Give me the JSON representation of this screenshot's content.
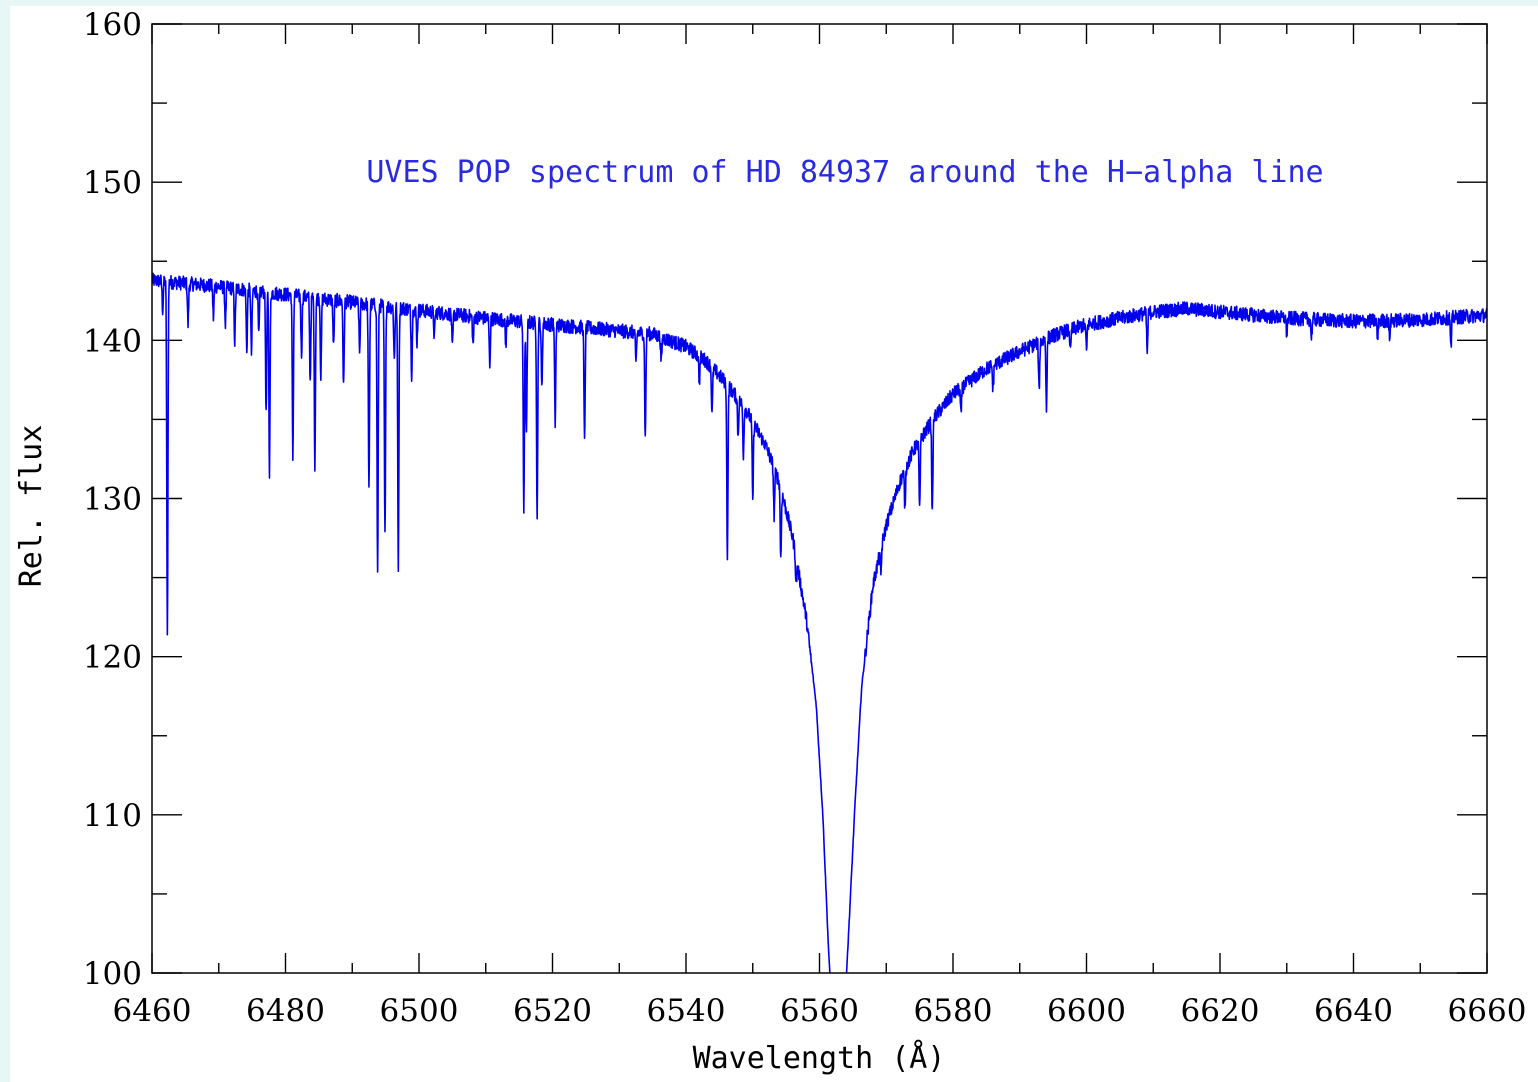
{
  "page": {
    "background": "#e6f7f5",
    "panel_background": "#ffffff"
  },
  "chart_data": {
    "type": "line",
    "title": "UVES POP spectrum of HD 84937 around the H−alpha line",
    "xlabel": "Wavelength (Å)",
    "ylabel": "Rel. flux",
    "xlim": [
      6460,
      6660
    ],
    "ylim": [
      100,
      160
    ],
    "x_major_ticks": [
      6460,
      6480,
      6500,
      6520,
      6540,
      6560,
      6580,
      6600,
      6620,
      6640,
      6660
    ],
    "x_minor_step": 10,
    "y_major_ticks": [
      100,
      110,
      120,
      130,
      140,
      150,
      160
    ],
    "y_minor_step": 5,
    "grid": false,
    "legend": "none",
    "line_color": "#0000ee",
    "title_color": "#2a2ae0",
    "series": [
      {
        "continuum": [
          [
            6460,
            143.8
          ],
          [
            6470,
            143.4
          ],
          [
            6480,
            142.9
          ],
          [
            6490,
            142.4
          ],
          [
            6500,
            141.9
          ],
          [
            6510,
            141.4
          ],
          [
            6520,
            141.0
          ],
          [
            6530,
            140.6
          ],
          [
            6535,
            140.4
          ],
          [
            6540,
            139.6
          ],
          [
            6543,
            138.7
          ],
          [
            6546,
            137.3
          ],
          [
            6549,
            135.6
          ],
          [
            6552,
            133.3
          ],
          [
            6554,
            131.0
          ],
          [
            6556,
            127.5
          ],
          [
            6558,
            122.5
          ],
          [
            6559.5,
            117.0
          ],
          [
            6560.5,
            110.0
          ],
          [
            6561.3,
            102.0
          ],
          [
            6562,
            96.0
          ],
          [
            6563.5,
            96.0
          ],
          [
            6564.3,
            102.0
          ],
          [
            6565.3,
            110.5
          ],
          [
            6566.3,
            118.0
          ],
          [
            6568,
            124.5
          ],
          [
            6570,
            128.3
          ],
          [
            6572,
            131.0
          ],
          [
            6574,
            133.0
          ],
          [
            6577,
            135.0
          ],
          [
            6580,
            136.6
          ],
          [
            6585,
            138.2
          ],
          [
            6590,
            139.3
          ],
          [
            6595,
            140.3
          ],
          [
            6600,
            141.0
          ],
          [
            6605,
            141.4
          ],
          [
            6610,
            141.8
          ],
          [
            6615,
            142.0
          ],
          [
            6620,
            141.8
          ],
          [
            6630,
            141.4
          ],
          [
            6640,
            141.2
          ],
          [
            6650,
            141.3
          ],
          [
            6660,
            141.6
          ]
        ],
        "absorption_lines": [
          {
            "x": 6462.3,
            "depth": 22.5
          },
          {
            "x": 6461.6,
            "depth": 1.8
          },
          {
            "x": 6465.4,
            "depth": 2.6
          },
          {
            "x": 6469.2,
            "depth": 2.0
          },
          {
            "x": 6471.0,
            "depth": 2.3
          },
          {
            "x": 6472.4,
            "depth": 3.4
          },
          {
            "x": 6474.2,
            "depth": 3.8
          },
          {
            "x": 6474.9,
            "depth": 4.0
          },
          {
            "x": 6476.0,
            "depth": 2.9
          },
          {
            "x": 6477.1,
            "depth": 7.8
          },
          {
            "x": 6477.6,
            "depth": 11.3
          },
          {
            "x": 6481.1,
            "depth": 10.3
          },
          {
            "x": 6482.4,
            "depth": 3.7
          },
          {
            "x": 6483.7,
            "depth": 5.3
          },
          {
            "x": 6484.4,
            "depth": 10.5
          },
          {
            "x": 6485.3,
            "depth": 5.0
          },
          {
            "x": 6487.2,
            "depth": 3.0
          },
          {
            "x": 6488.7,
            "depth": 5.5
          },
          {
            "x": 6491.1,
            "depth": 3.1
          },
          {
            "x": 6492.5,
            "depth": 11.8
          },
          {
            "x": 6493.8,
            "depth": 17.0
          },
          {
            "x": 6494.9,
            "depth": 14.6
          },
          {
            "x": 6496.3,
            "depth": 3.3
          },
          {
            "x": 6496.9,
            "depth": 16.3
          },
          {
            "x": 6498.9,
            "depth": 4.1
          },
          {
            "x": 6499.7,
            "depth": 2.0
          },
          {
            "x": 6502.3,
            "depth": 1.6
          },
          {
            "x": 6505.0,
            "depth": 2.2
          },
          {
            "x": 6508.1,
            "depth": 1.8
          },
          {
            "x": 6510.6,
            "depth": 2.9
          },
          {
            "x": 6513.0,
            "depth": 1.6
          },
          {
            "x": 6515.7,
            "depth": 12.0
          },
          {
            "x": 6516.1,
            "depth": 7.0
          },
          {
            "x": 6517.7,
            "depth": 12.3
          },
          {
            "x": 6518.4,
            "depth": 4.1
          },
          {
            "x": 6520.4,
            "depth": 6.2
          },
          {
            "x": 6524.8,
            "depth": 7.3
          },
          {
            "x": 6532.5,
            "depth": 2.0
          },
          {
            "x": 6533.9,
            "depth": 6.7
          },
          {
            "x": 6536.3,
            "depth": 1.6
          },
          {
            "x": 6542.0,
            "depth": 1.6
          },
          {
            "x": 6543.9,
            "depth": 3.0
          },
          {
            "x": 6546.2,
            "depth": 11.0
          },
          {
            "x": 6547.8,
            "depth": 2.3
          },
          {
            "x": 6548.6,
            "depth": 3.0
          },
          {
            "x": 6550.0,
            "depth": 5.0
          },
          {
            "x": 6553.2,
            "depth": 3.0
          },
          {
            "x": 6554.2,
            "depth": 4.5
          },
          {
            "x": 6556.5,
            "depth": 1.8
          },
          {
            "x": 6569.2,
            "depth": 1.6
          },
          {
            "x": 6572.8,
            "depth": 2.3
          },
          {
            "x": 6575.0,
            "depth": 4.5
          },
          {
            "x": 6576.9,
            "depth": 6.0
          },
          {
            "x": 6581.2,
            "depth": 1.8
          },
          {
            "x": 6586.0,
            "depth": 1.6
          },
          {
            "x": 6592.9,
            "depth": 3.0
          },
          {
            "x": 6594.0,
            "depth": 4.2
          },
          {
            "x": 6597.6,
            "depth": 1.4
          },
          {
            "x": 6600.0,
            "depth": 1.7
          },
          {
            "x": 6609.1,
            "depth": 2.5
          },
          {
            "x": 6630.0,
            "depth": 1.0
          },
          {
            "x": 6633.7,
            "depth": 1.1
          },
          {
            "x": 6643.6,
            "depth": 1.2
          },
          {
            "x": 6645.4,
            "depth": 1.0
          },
          {
            "x": 6654.6,
            "depth": 2.0
          }
        ],
        "noise_amplitude": 0.45
      }
    ]
  }
}
